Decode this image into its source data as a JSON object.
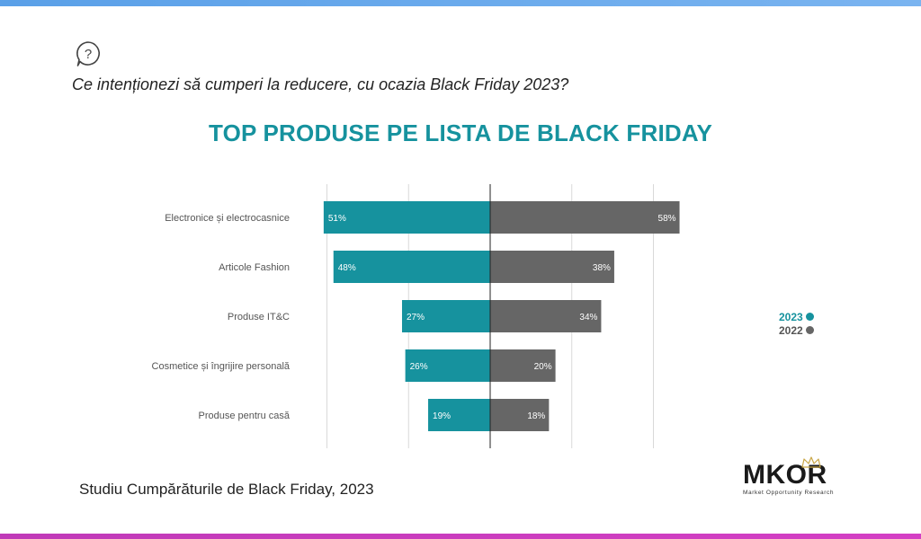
{
  "header": {
    "question": "Ce intenționezi să cumperi la reducere, cu ocazia Black Friday 2023?",
    "title": "TOP PRODUSE PE LISTA DE BLACK FRIDAY"
  },
  "footer": {
    "source": "Studiu Cumpărăturile de Black Friday, 2023"
  },
  "logo": {
    "name": "MKOR",
    "tagline": "Market Opportunity Research"
  },
  "colors": {
    "series_2023": "#16929e",
    "series_2022": "#666666",
    "title": "#16929e"
  },
  "chart_data": {
    "type": "bar",
    "orientation": "horizontal-butterfly",
    "categories": [
      "Electronice și electrocasnice",
      "Articole Fashion",
      "Produse IT&C",
      "Cosmetice și îngrijire personală",
      "Produse pentru casă"
    ],
    "series": [
      {
        "name": "2023",
        "values": [
          51,
          48,
          27,
          26,
          19
        ],
        "labels": [
          "51%",
          "48%",
          "27%",
          "26%",
          "19%"
        ],
        "color": "#16929e"
      },
      {
        "name": "2022",
        "values": [
          58,
          38,
          34,
          20,
          18
        ],
        "labels": [
          "58%",
          "38%",
          "34%",
          "20%",
          "18%"
        ],
        "color": "#666666"
      }
    ],
    "xlim": [
      -60,
      60
    ],
    "grid": true,
    "legend_position": "right"
  }
}
